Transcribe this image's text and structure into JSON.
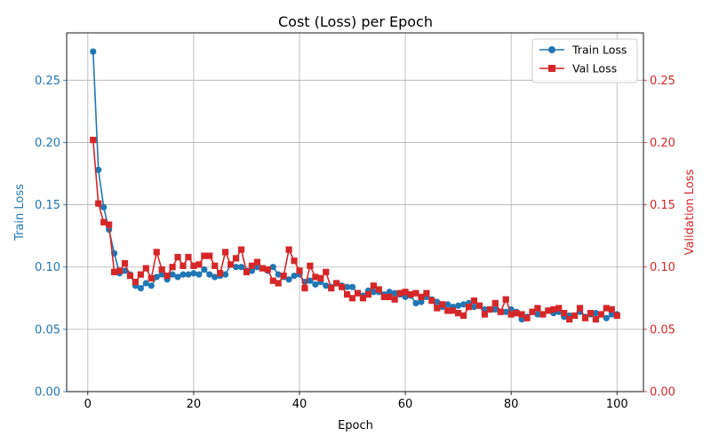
{
  "chart_data": {
    "type": "line",
    "title": "Cost (Loss) per Epoch",
    "xlabel": "Epoch",
    "ylabel_left": "Train Loss",
    "ylabel_right": "Validation Loss",
    "xlim": [
      -4,
      105
    ],
    "ylim": [
      0,
      0.288
    ],
    "x_ticks": [
      0,
      20,
      40,
      60,
      80,
      100
    ],
    "y_ticks": [
      0.0,
      0.05,
      0.1,
      0.15,
      0.2,
      0.25
    ],
    "y_tick_labels": [
      "0.00",
      "0.05",
      "0.10",
      "0.15",
      "0.20",
      "0.25"
    ],
    "grid": true,
    "legend_position": "top-right",
    "colors": {
      "train": "#1f77b4",
      "val": "#d62728",
      "axis": "#000000",
      "grid": "#b0b0b0"
    },
    "series": [
      {
        "name": "Train Loss",
        "axis": "left",
        "marker": "circle",
        "x": [
          1,
          2,
          3,
          4,
          5,
          6,
          7,
          8,
          9,
          10,
          11,
          12,
          13,
          14,
          15,
          16,
          17,
          18,
          19,
          20,
          21,
          22,
          23,
          24,
          25,
          26,
          27,
          28,
          29,
          30,
          31,
          32,
          33,
          34,
          35,
          36,
          37,
          38,
          39,
          40,
          41,
          42,
          43,
          44,
          45,
          46,
          47,
          48,
          49,
          50,
          51,
          52,
          53,
          54,
          55,
          56,
          57,
          58,
          59,
          60,
          61,
          62,
          63,
          64,
          65,
          66,
          67,
          68,
          69,
          70,
          71,
          72,
          73,
          74,
          75,
          76,
          77,
          78,
          79,
          80,
          81,
          82,
          83,
          84,
          85,
          86,
          87,
          88,
          89,
          90,
          91,
          92,
          93,
          94,
          95,
          96,
          97,
          98,
          99,
          100
        ],
        "values": [
          0.273,
          0.178,
          0.148,
          0.13,
          0.111,
          0.095,
          0.097,
          0.094,
          0.085,
          0.083,
          0.087,
          0.085,
          0.092,
          0.094,
          0.09,
          0.094,
          0.092,
          0.094,
          0.094,
          0.095,
          0.094,
          0.098,
          0.094,
          0.092,
          0.093,
          0.094,
          0.102,
          0.1,
          0.1,
          0.097,
          0.097,
          0.1,
          0.099,
          0.097,
          0.1,
          0.094,
          0.092,
          0.09,
          0.093,
          0.094,
          0.088,
          0.089,
          0.086,
          0.088,
          0.085,
          0.084,
          0.087,
          0.085,
          0.084,
          0.084,
          0.079,
          0.077,
          0.081,
          0.08,
          0.08,
          0.078,
          0.08,
          0.079,
          0.078,
          0.076,
          0.077,
          0.071,
          0.072,
          0.076,
          0.074,
          0.072,
          0.068,
          0.07,
          0.068,
          0.069,
          0.07,
          0.071,
          0.068,
          0.069,
          0.066,
          0.066,
          0.066,
          0.064,
          0.064,
          0.066,
          0.064,
          0.058,
          0.06,
          0.064,
          0.062,
          0.062,
          0.065,
          0.063,
          0.064,
          0.06,
          0.061,
          0.061,
          0.064,
          0.06,
          0.062,
          0.063,
          0.062,
          0.059,
          0.062,
          0.062
        ]
      },
      {
        "name": "Val Loss",
        "axis": "right",
        "marker": "square",
        "x": [
          1,
          2,
          3,
          4,
          5,
          6,
          7,
          8,
          9,
          10,
          11,
          12,
          13,
          14,
          15,
          16,
          17,
          18,
          19,
          20,
          21,
          22,
          23,
          24,
          25,
          26,
          27,
          28,
          29,
          30,
          31,
          32,
          33,
          34,
          35,
          36,
          37,
          38,
          39,
          40,
          41,
          42,
          43,
          44,
          45,
          46,
          47,
          48,
          49,
          50,
          51,
          52,
          53,
          54,
          55,
          56,
          57,
          58,
          59,
          60,
          61,
          62,
          63,
          64,
          65,
          66,
          67,
          68,
          69,
          70,
          71,
          72,
          73,
          74,
          75,
          76,
          77,
          78,
          79,
          80,
          81,
          82,
          83,
          84,
          85,
          86,
          87,
          88,
          89,
          90,
          91,
          92,
          93,
          94,
          95,
          96,
          97,
          98,
          99,
          100
        ],
        "values": [
          0.202,
          0.151,
          0.136,
          0.134,
          0.096,
          0.097,
          0.103,
          0.093,
          0.088,
          0.094,
          0.099,
          0.091,
          0.112,
          0.098,
          0.093,
          0.1,
          0.108,
          0.101,
          0.108,
          0.101,
          0.102,
          0.109,
          0.109,
          0.101,
          0.095,
          0.112,
          0.102,
          0.107,
          0.114,
          0.096,
          0.101,
          0.104,
          0.099,
          0.098,
          0.089,
          0.087,
          0.093,
          0.114,
          0.105,
          0.097,
          0.083,
          0.101,
          0.092,
          0.091,
          0.096,
          0.083,
          0.087,
          0.084,
          0.078,
          0.075,
          0.079,
          0.075,
          0.078,
          0.085,
          0.082,
          0.076,
          0.076,
          0.074,
          0.079,
          0.08,
          0.078,
          0.079,
          0.076,
          0.079,
          0.073,
          0.067,
          0.07,
          0.065,
          0.065,
          0.063,
          0.061,
          0.068,
          0.073,
          0.069,
          0.062,
          0.066,
          0.071,
          0.064,
          0.074,
          0.062,
          0.063,
          0.062,
          0.059,
          0.064,
          0.067,
          0.062,
          0.065,
          0.066,
          0.067,
          0.063,
          0.058,
          0.061,
          0.067,
          0.059,
          0.063,
          0.058,
          0.062,
          0.067,
          0.066,
          0.061
        ]
      }
    ]
  }
}
